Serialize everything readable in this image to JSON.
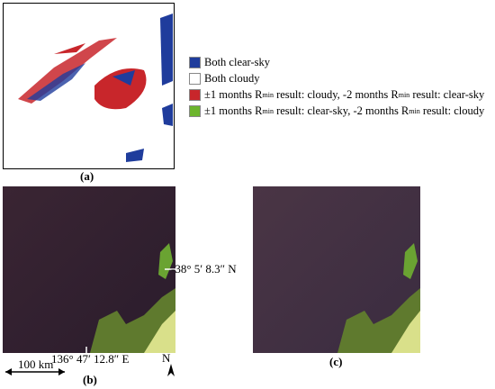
{
  "panel_a": {
    "label": "(a)"
  },
  "legend": [
    {
      "color": "#1f3c9c",
      "text": [
        "Both clear-sky"
      ]
    },
    {
      "color": "#ffffff",
      "text": [
        "Both cloudy"
      ]
    },
    {
      "color": "#c8262b",
      "text": [
        "±1 months R",
        "min",
        " result: cloudy, -2 months R",
        "min",
        " result: clear-sky"
      ]
    },
    {
      "color": "#6cb52d",
      "text": [
        "±1 months R",
        "min",
        " result: clear-sky, -2 months R",
        "min",
        " result: cloudy"
      ]
    }
  ],
  "panel_b": {
    "label": "(b)",
    "lat_label": "-38° 5′ 8.3″ N",
    "lon_label": "136° 47′ 12.8″ E",
    "scale_label": "100 km",
    "north_label": "N"
  },
  "panel_c": {
    "label": "(c)"
  }
}
